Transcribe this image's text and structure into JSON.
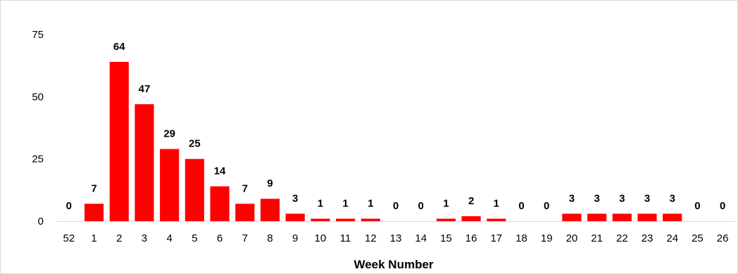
{
  "chart_data": {
    "type": "bar",
    "title": "",
    "xlabel": "Week Number",
    "ylabel": "",
    "ylim": [
      0,
      75
    ],
    "yticks": [
      0,
      25,
      50,
      75
    ],
    "grid": false,
    "legend": "none",
    "bar_color": "#ff0000",
    "categories": [
      "52",
      "1",
      "2",
      "3",
      "4",
      "5",
      "6",
      "7",
      "8",
      "9",
      "10",
      "11",
      "12",
      "13",
      "14",
      "15",
      "16",
      "17",
      "18",
      "19",
      "20",
      "21",
      "22",
      "23",
      "24",
      "25",
      "26"
    ],
    "values": [
      0,
      7,
      64,
      47,
      29,
      25,
      14,
      7,
      9,
      3,
      1,
      1,
      1,
      0,
      0,
      1,
      2,
      1,
      0,
      0,
      3,
      3,
      3,
      3,
      3,
      0,
      0
    ]
  }
}
